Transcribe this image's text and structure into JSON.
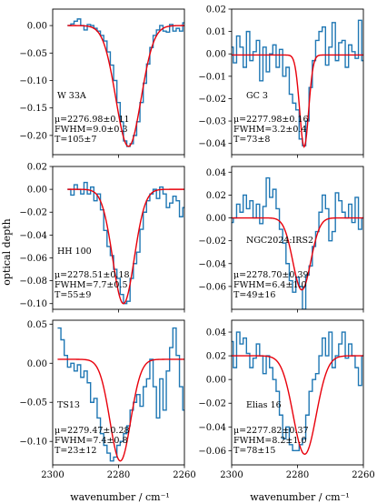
{
  "figure": {
    "ylabel": "optical depth",
    "xlabel": "wavenumber / cm⁻¹",
    "colors": {
      "data": "#1f77b4",
      "fit": "#e8000b",
      "axes": "#000000"
    }
  },
  "chart_data": [
    {
      "type": "line",
      "name": "W 33A",
      "xlim": [
        2300,
        2260
      ],
      "ylim": [
        -0.235,
        0.03
      ],
      "yticks": [
        0.0,
        -0.05,
        -0.1,
        -0.15,
        -0.2
      ],
      "ytick_labels": [
        "0.00",
        "−0.05",
        "−0.10",
        "−0.15",
        "−0.20"
      ],
      "fit": {
        "center": 2276.98,
        "fwhm": 9.0,
        "depth": 0.22,
        "baseline": 0.0
      },
      "annotation": [
        "μ=2276.98±0.11",
        "FWHM=9.0±0.3",
        "T=105±7"
      ],
      "x": [
        2295,
        2294,
        2293,
        2292,
        2291,
        2290,
        2289,
        2288,
        2287,
        2286,
        2285,
        2284,
        2283,
        2282,
        2281,
        2280,
        2279,
        2278,
        2277,
        2276,
        2275,
        2274,
        2273,
        2272,
        2271,
        2270,
        2269,
        2268,
        2267,
        2266,
        2265,
        2264,
        2263,
        2262,
        2261,
        2260
      ],
      "y": [
        0.0,
        0.003,
        0.008,
        0.012,
        0.0,
        -0.008,
        0.002,
        0.0,
        -0.005,
        -0.01,
        -0.018,
        -0.028,
        -0.048,
        -0.072,
        -0.1,
        -0.14,
        -0.175,
        -0.21,
        -0.22,
        -0.215,
        -0.2,
        -0.175,
        -0.14,
        -0.105,
        -0.07,
        -0.04,
        -0.018,
        -0.008,
        0.0,
        -0.01,
        -0.012,
        0.002,
        -0.01,
        -0.005,
        -0.01,
        0.005
      ]
    },
    {
      "type": "line",
      "name": "GC 3",
      "xlim": [
        2300,
        2260
      ],
      "ylim": [
        -0.045,
        0.02
      ],
      "yticks": [
        0.02,
        0.01,
        0.0,
        -0.01,
        -0.02,
        -0.03,
        -0.04
      ],
      "ytick_labels": [
        "0.02",
        "0.01",
        "0.00",
        "−0.01",
        "−0.02",
        "−0.03",
        "−0.04"
      ],
      "fit": {
        "center": 2277.98,
        "fwhm": 3.2,
        "depth": 0.041,
        "baseline": -0.0005
      },
      "annotation": [
        "μ=2277.98±0.16",
        "FWHM=3.2±0.4",
        "T=73±8"
      ],
      "x": [
        2300,
        2299,
        2298,
        2297,
        2296,
        2295,
        2294,
        2293,
        2292,
        2291,
        2290,
        2289,
        2288,
        2287,
        2286,
        2285,
        2284,
        2283,
        2282,
        2281,
        2280,
        2279,
        2278,
        2277,
        2276,
        2275,
        2274,
        2273,
        2272,
        2271,
        2270,
        2269,
        2268,
        2267,
        2266,
        2265,
        2264,
        2263,
        2262,
        2261,
        2260
      ],
      "y": [
        0.003,
        -0.004,
        0.008,
        0.003,
        -0.006,
        0.01,
        -0.003,
        0.001,
        0.006,
        -0.012,
        0.003,
        -0.008,
        0.0,
        0.004,
        -0.006,
        0.002,
        -0.01,
        -0.006,
        -0.018,
        -0.022,
        -0.025,
        -0.038,
        -0.041,
        -0.03,
        -0.015,
        -0.003,
        0.006,
        0.01,
        0.012,
        -0.005,
        0.003,
        0.014,
        -0.003,
        0.005,
        0.006,
        -0.006,
        0.004,
        0.001,
        -0.002,
        0.015,
        -0.003
      ]
    },
    {
      "type": "line",
      "name": "HH 100",
      "xlim": [
        2300,
        2260
      ],
      "ylim": [
        -0.105,
        0.02
      ],
      "yticks": [
        0.02,
        0.0,
        -0.02,
        -0.04,
        -0.06,
        -0.08,
        -0.1
      ],
      "ytick_labels": [
        "0.02",
        "0.00",
        "−0.02",
        "−0.04",
        "−0.06",
        "−0.08",
        "−0.10"
      ],
      "fit": {
        "center": 2278.51,
        "fwhm": 7.7,
        "depth": 0.1,
        "baseline": 0.0
      },
      "annotation": [
        "μ=2278.51±0.18",
        "FWHM=7.7±0.5",
        "T=55±9"
      ],
      "x": [
        2295,
        2294,
        2293,
        2292,
        2291,
        2290,
        2289,
        2288,
        2287,
        2286,
        2285,
        2284,
        2283,
        2282,
        2281,
        2280,
        2279,
        2278,
        2277,
        2276,
        2275,
        2274,
        2273,
        2272,
        2271,
        2270,
        2269,
        2268,
        2267,
        2266,
        2265,
        2264,
        2263,
        2262,
        2261,
        2260
      ],
      "y": [
        0.0,
        -0.005,
        0.004,
        0.0,
        -0.004,
        0.006,
        -0.004,
        0.002,
        -0.01,
        -0.004,
        -0.018,
        -0.036,
        -0.05,
        -0.058,
        -0.07,
        -0.078,
        -0.092,
        -0.1,
        -0.098,
        -0.078,
        -0.065,
        -0.055,
        -0.035,
        -0.02,
        -0.01,
        -0.004,
        0.0,
        -0.008,
        0.002,
        -0.004,
        -0.016,
        -0.012,
        -0.006,
        -0.01,
        -0.024,
        -0.016
      ]
    },
    {
      "type": "line",
      "name": "NGC2024:IRS2",
      "xlim": [
        2300,
        2260
      ],
      "ylim": [
        -0.08,
        0.045
      ],
      "yticks": [
        0.04,
        0.02,
        0.0,
        -0.02,
        -0.04,
        -0.06
      ],
      "ytick_labels": [
        "0.04",
        "0.02",
        "0.00",
        "−0.02",
        "−0.04",
        "−0.06"
      ],
      "fit": {
        "center": 2278.7,
        "fwhm": 6.4,
        "depth": 0.063,
        "baseline": 0.0
      },
      "annotation": [
        "μ=2278.70±0.39",
        "FWHM=6.4±1.0",
        "T=49±16"
      ],
      "x": [
        2300,
        2299,
        2298,
        2297,
        2296,
        2295,
        2294,
        2293,
        2292,
        2291,
        2290,
        2289,
        2288,
        2287,
        2286,
        2285,
        2284,
        2283,
        2282,
        2281,
        2280,
        2279,
        2278,
        2277,
        2276,
        2275,
        2274,
        2273,
        2272,
        2271,
        2270,
        2269,
        2268,
        2267,
        2266,
        2265,
        2264,
        2263,
        2262,
        2261,
        2260
      ],
      "y": [
        -0.004,
        0.0,
        0.012,
        0.005,
        0.02,
        0.008,
        0.015,
        0.0,
        0.012,
        -0.005,
        0.01,
        0.035,
        0.018,
        0.025,
        0.008,
        -0.01,
        -0.022,
        -0.04,
        -0.055,
        -0.065,
        -0.052,
        -0.06,
        -0.08,
        -0.05,
        -0.042,
        -0.025,
        -0.012,
        0.005,
        0.02,
        0.008,
        -0.02,
        -0.012,
        0.022,
        0.015,
        0.005,
        0.0,
        0.012,
        -0.004,
        0.018,
        -0.01,
        0.0
      ]
    },
    {
      "type": "line",
      "name": "TS13",
      "xlim": [
        2300,
        2260
      ],
      "ylim": [
        -0.13,
        0.055
      ],
      "yticks": [
        0.05,
        0.0,
        -0.05,
        -0.1
      ],
      "ytick_labels": [
        "0.05",
        "0.00",
        "−0.05",
        "−0.10"
      ],
      "fit": {
        "center": 2279.47,
        "fwhm": 7.4,
        "depth": 0.13,
        "baseline": 0.005
      },
      "annotation": [
        "μ=2279.47±0.28",
        "FWHM=7.4±0.8",
        "T=23±12"
      ],
      "x": [
        2298,
        2297,
        2296,
        2295,
        2294,
        2293,
        2292,
        2291,
        2290,
        2289,
        2288,
        2287,
        2286,
        2285,
        2284,
        2283,
        2282,
        2281,
        2280,
        2279,
        2278,
        2277,
        2276,
        2275,
        2274,
        2273,
        2272,
        2271,
        2270,
        2269,
        2268,
        2267,
        2266,
        2265,
        2264,
        2263,
        2262,
        2261,
        2260
      ],
      "y": [
        0.045,
        0.03,
        0.01,
        -0.005,
        0.0,
        -0.01,
        -0.002,
        -0.018,
        -0.01,
        -0.025,
        -0.05,
        -0.045,
        -0.07,
        -0.09,
        -0.105,
        -0.115,
        -0.125,
        -0.12,
        -0.105,
        -0.1,
        -0.09,
        -0.08,
        -0.06,
        -0.05,
        -0.04,
        -0.055,
        -0.03,
        -0.02,
        0.005,
        -0.03,
        -0.07,
        -0.02,
        -0.06,
        -0.01,
        0.02,
        0.045,
        0.01,
        -0.03,
        -0.06
      ]
    },
    {
      "type": "line",
      "name": "Elias 16",
      "xlim": [
        2300,
        2260
      ],
      "ylim": [
        -0.072,
        0.05
      ],
      "yticks": [
        0.04,
        0.02,
        0.0,
        -0.02,
        -0.04,
        -0.06
      ],
      "ytick_labels": [
        "0.04",
        "0.02",
        "0.00",
        "−0.02",
        "−0.04",
        "−0.06"
      ],
      "fit": {
        "center": 2277.82,
        "fwhm": 8.2,
        "depth": 0.083,
        "baseline": 0.02
      },
      "annotation": [
        "μ=2277.82±0.37",
        "FWHM=8.2±1.0",
        "T=78±15"
      ],
      "x": [
        2300,
        2299,
        2298,
        2297,
        2296,
        2295,
        2294,
        2293,
        2292,
        2291,
        2290,
        2289,
        2288,
        2287,
        2286,
        2285,
        2284,
        2283,
        2282,
        2281,
        2280,
        2279,
        2278,
        2277,
        2276,
        2275,
        2274,
        2273,
        2272,
        2271,
        2270,
        2269,
        2268,
        2267,
        2266,
        2265,
        2264,
        2263,
        2262,
        2261,
        2260
      ],
      "y": [
        0.032,
        0.01,
        0.04,
        0.03,
        0.035,
        0.022,
        0.01,
        0.018,
        0.03,
        0.02,
        0.005,
        0.02,
        0.01,
        0.0,
        -0.01,
        -0.03,
        -0.05,
        -0.04,
        -0.055,
        -0.06,
        -0.06,
        -0.055,
        -0.05,
        -0.03,
        -0.01,
        0.0,
        0.005,
        0.02,
        0.035,
        0.02,
        0.04,
        0.01,
        0.02,
        0.03,
        0.04,
        0.018,
        0.03,
        0.02,
        0.01,
        -0.005,
        0.02
      ]
    }
  ]
}
